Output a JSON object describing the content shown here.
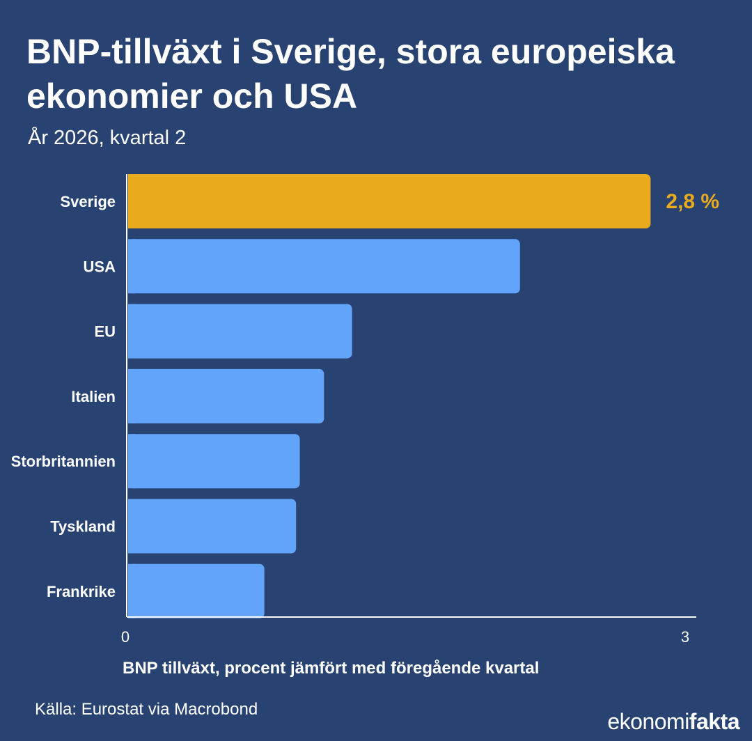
{
  "header": {
    "title": "BNP-tillväxt i Sverige, stora europeiska ekonomier och USA",
    "subtitle": "År 2026, kvartal 2"
  },
  "footer": {
    "source": "Källa: Eurostat via Macrobond",
    "logo_text_part1": "ekonomi",
    "logo_text_part2": "fakta"
  },
  "colors": {
    "background": "#284372",
    "highlight_bar": "#e8ab1e",
    "bar": "#63a4fb",
    "highlight_label": "#e8ab1e",
    "text": "#ffffff"
  },
  "chart_data": {
    "type": "bar",
    "orientation": "horizontal",
    "categories": [
      "Sverige",
      "USA",
      "EU",
      "Italien",
      "Storbritannien",
      "Tyskland",
      "Frankrike"
    ],
    "values": [
      2.8,
      2.1,
      1.2,
      1.05,
      0.92,
      0.9,
      0.73
    ],
    "highlight_index": 0,
    "data_labels": [
      "2,8 %",
      "",
      "",
      "",
      "",
      "",
      ""
    ],
    "xlim": [
      0,
      3
    ],
    "x_ticks": [
      "0",
      "3"
    ],
    "xlabel": "BNP tillväxt, procent jämfört med föregående kvartal",
    "ylabel": ""
  }
}
